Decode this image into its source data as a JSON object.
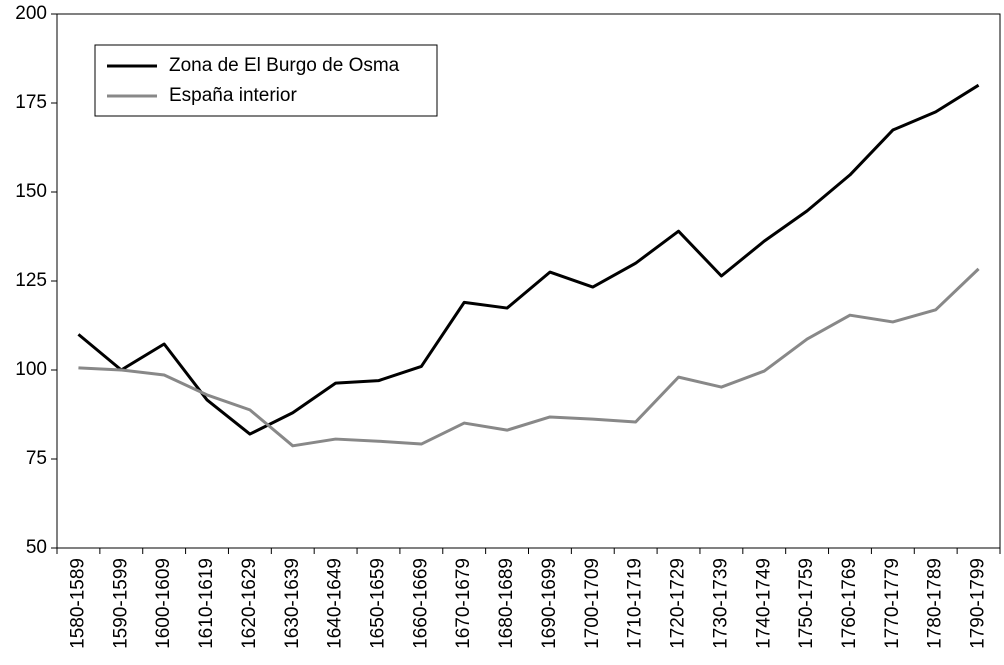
{
  "chart_data": {
    "type": "line",
    "categories": [
      "1580-1589",
      "1590-1599",
      "1600-1609",
      "1610-1619",
      "1620-1629",
      "1630-1639",
      "1640-1649",
      "1650-1659",
      "1660-1669",
      "1670-1679",
      "1680-1689",
      "1690-1699",
      "1700-1709",
      "1710-1719",
      "1720-1729",
      "1730-1739",
      "1740-1749",
      "1750-1759",
      "1760-1769",
      "1770-1779",
      "1780-1789",
      "1790-1799"
    ],
    "series": [
      {
        "name": "Zona de El Burgo de Osma",
        "color": "#000000",
        "values": [
          110,
          100,
          107.3,
          91.6,
          82,
          88,
          96.3,
          97,
          101,
          119,
          117.4,
          127.5,
          123.3,
          130,
          139,
          126.4,
          136.2,
          144.7,
          154.8,
          167.4,
          172.5,
          180
        ]
      },
      {
        "name": "España interior",
        "color": "#888888",
        "values": [
          100.6,
          100,
          98.6,
          93,
          88.8,
          78.7,
          80.6,
          80,
          79.2,
          85.1,
          83.1,
          86.8,
          86.2,
          85.4,
          98,
          95.2,
          99.7,
          108.7,
          115.4,
          113.5,
          116.9,
          128.4
        ]
      }
    ],
    "ylim": [
      50,
      200
    ],
    "yticks": [
      50,
      75,
      100,
      125,
      150,
      175,
      200
    ],
    "grid": false,
    "legend": "upper left"
  }
}
